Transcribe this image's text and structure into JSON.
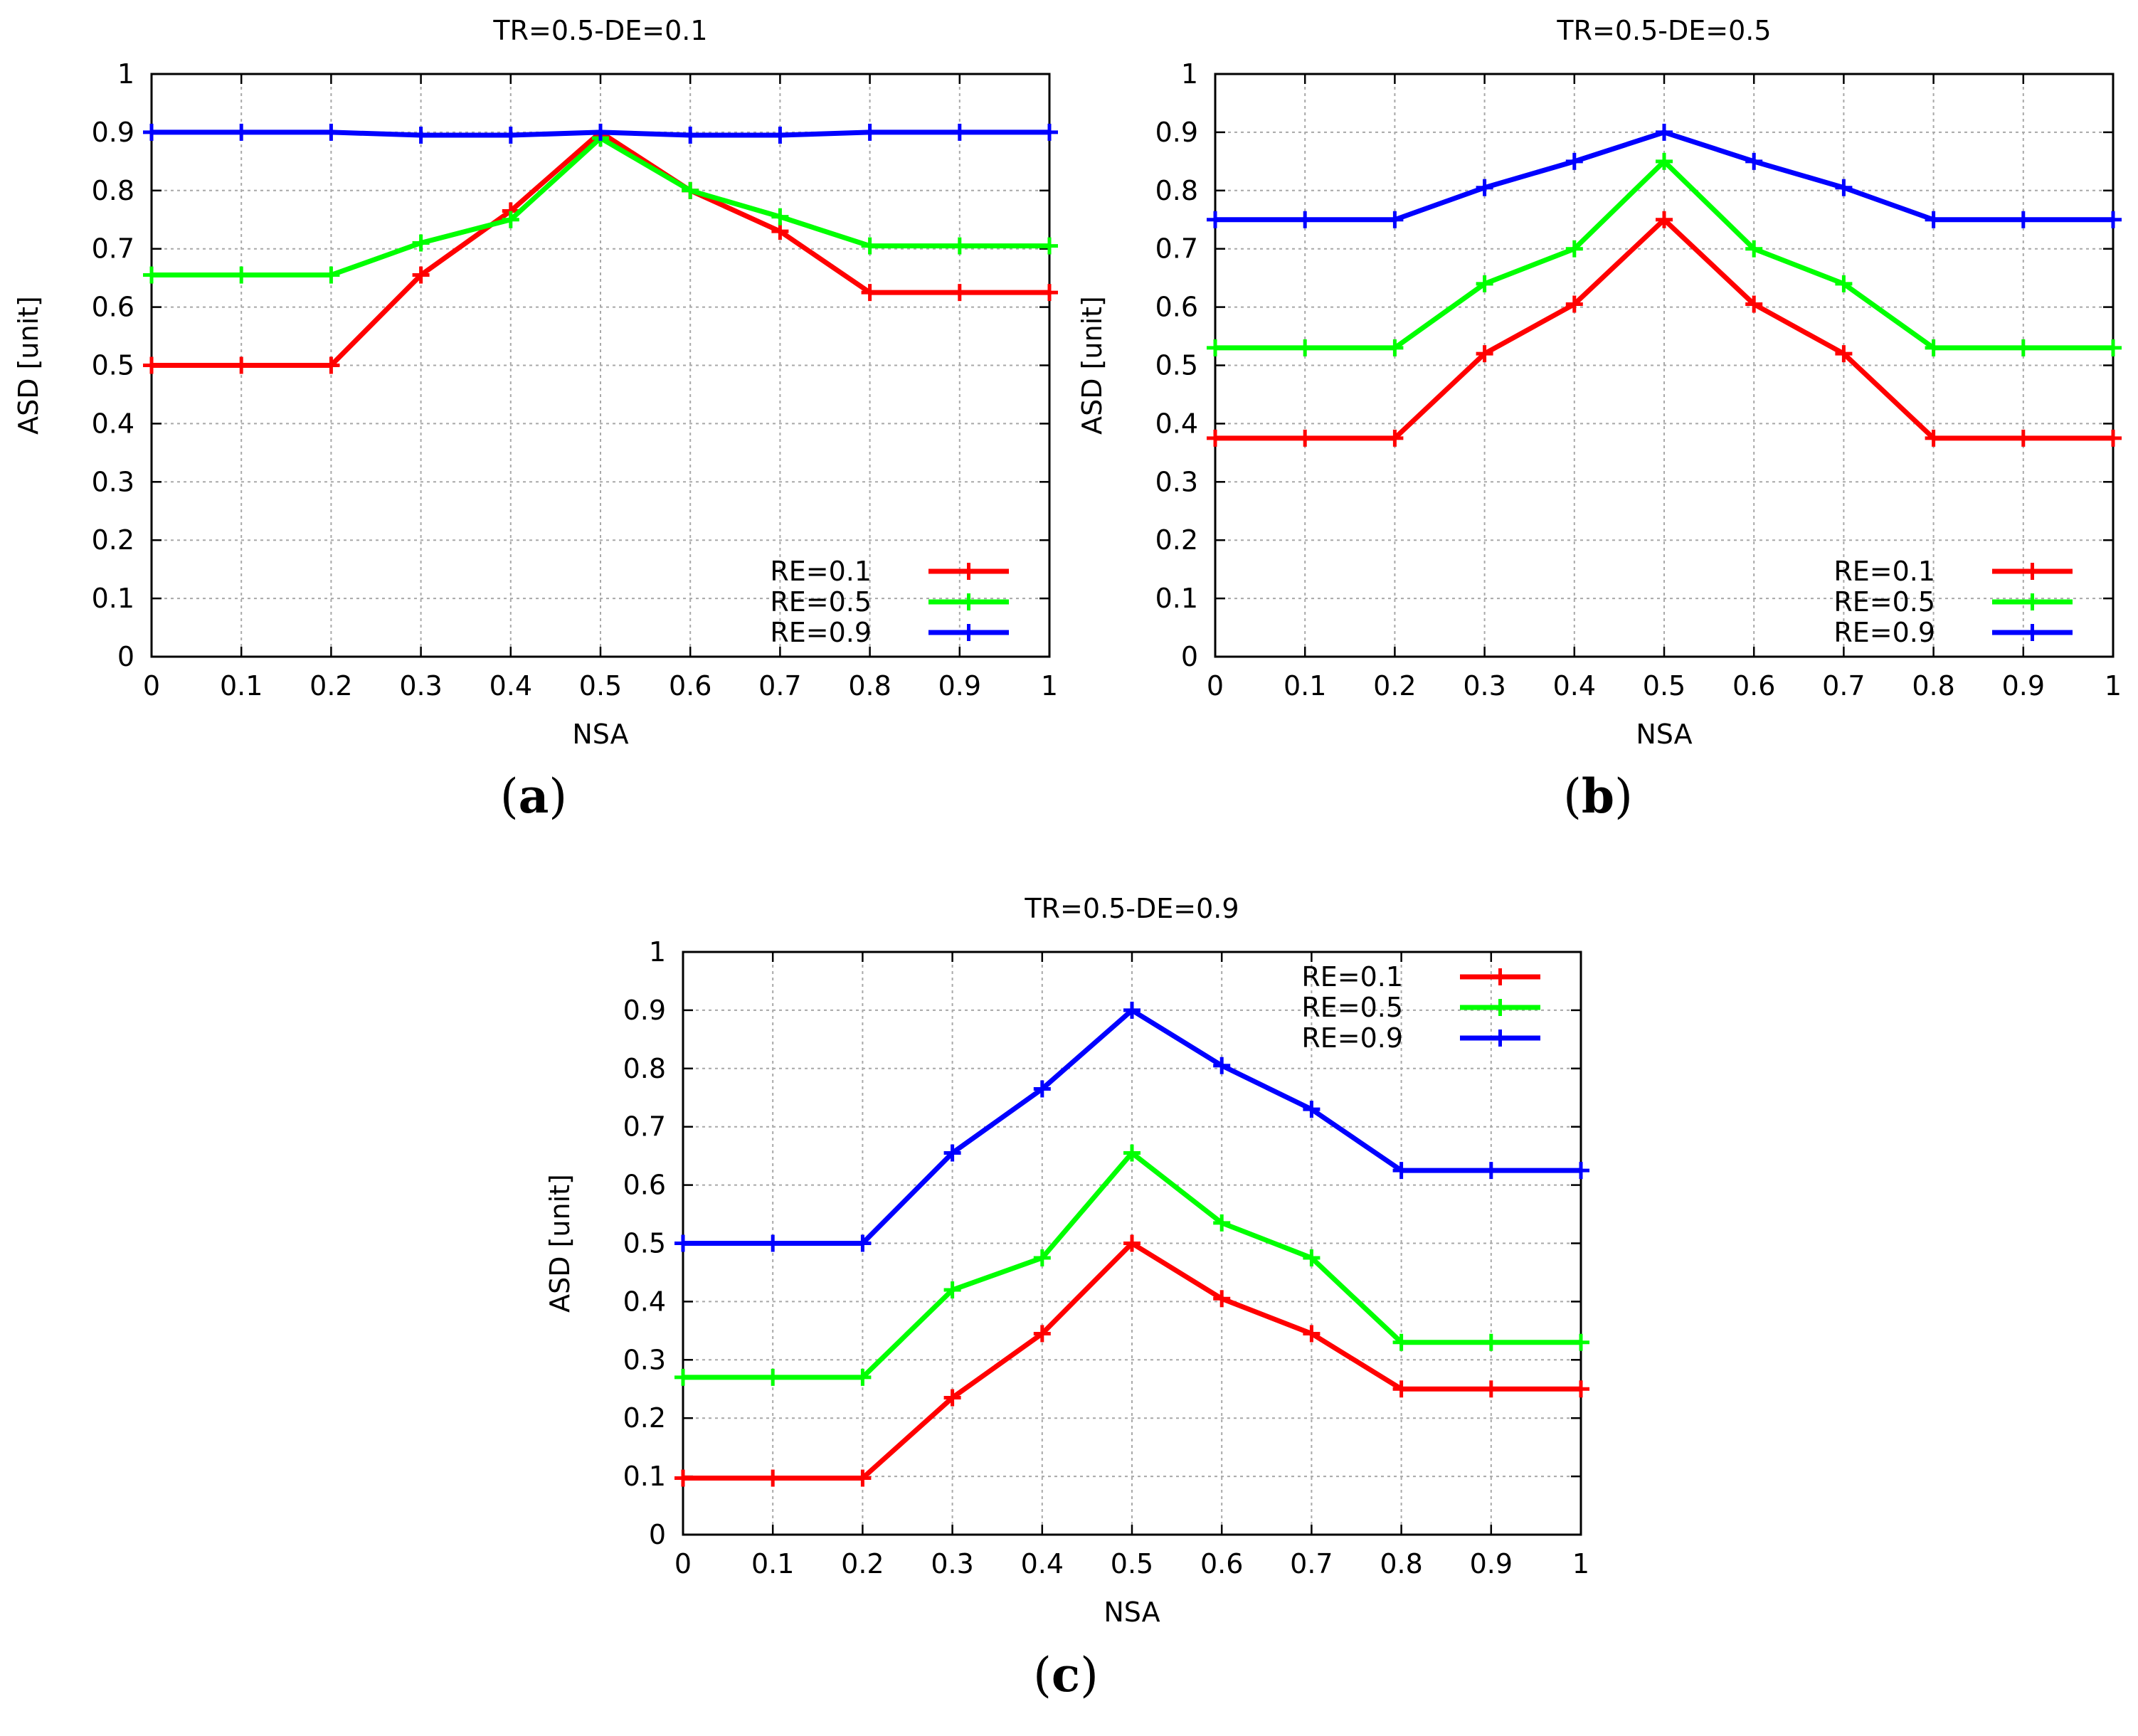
{
  "figure": {
    "panel_letters": [
      "a",
      "b",
      "c"
    ]
  },
  "colors": {
    "RE=0.1": "#ff0000",
    "RE=0.5": "#00ff00",
    "RE=0.9": "#0000ff"
  },
  "chart_data": [
    {
      "type": "line",
      "title": "TR=0.5-DE=0.1",
      "xlabel": "NSA",
      "ylabel": "ASD [unit]",
      "xlim": [
        0,
        1
      ],
      "ylim": [
        0,
        1
      ],
      "xticks": [
        "0",
        "0.1",
        "0.2",
        "0.3",
        "0.4",
        "0.5",
        "0.6",
        "0.7",
        "0.8",
        "0.9",
        "1"
      ],
      "yticks": [
        "0",
        "0.1",
        "0.2",
        "0.3",
        "0.4",
        "0.5",
        "0.6",
        "0.7",
        "0.8",
        "0.9",
        "1"
      ],
      "grid": true,
      "legend_position": "bottom-right",
      "x": [
        0,
        0.1,
        0.2,
        0.3,
        0.4,
        0.5,
        0.6,
        0.7,
        0.8,
        0.9,
        1.0
      ],
      "series": [
        {
          "name": "RE=0.1",
          "values": [
            0.5,
            0.5,
            0.5,
            0.655,
            0.765,
            0.9,
            0.8,
            0.73,
            0.625,
            0.625,
            0.625
          ]
        },
        {
          "name": "RE=0.5",
          "values": [
            0.655,
            0.655,
            0.655,
            0.71,
            0.75,
            0.89,
            0.8,
            0.755,
            0.705,
            0.705,
            0.705
          ]
        },
        {
          "name": "RE=0.9",
          "values": [
            0.9,
            0.9,
            0.9,
            0.895,
            0.895,
            0.9,
            0.895,
            0.895,
            0.9,
            0.9,
            0.9
          ]
        }
      ]
    },
    {
      "type": "line",
      "title": "TR=0.5-DE=0.5",
      "xlabel": "NSA",
      "ylabel": "ASD [unit]",
      "xlim": [
        0,
        1
      ],
      "ylim": [
        0,
        1
      ],
      "xticks": [
        "0",
        "0.1",
        "0.2",
        "0.3",
        "0.4",
        "0.5",
        "0.6",
        "0.7",
        "0.8",
        "0.9",
        "1"
      ],
      "yticks": [
        "0",
        "0.1",
        "0.2",
        "0.3",
        "0.4",
        "0.5",
        "0.6",
        "0.7",
        "0.8",
        "0.9",
        "1"
      ],
      "grid": true,
      "legend_position": "bottom-right",
      "x": [
        0,
        0.1,
        0.2,
        0.3,
        0.4,
        0.5,
        0.6,
        0.7,
        0.8,
        0.9,
        1.0
      ],
      "series": [
        {
          "name": "RE=0.1",
          "values": [
            0.375,
            0.375,
            0.375,
            0.52,
            0.605,
            0.75,
            0.605,
            0.52,
            0.375,
            0.375,
            0.375
          ]
        },
        {
          "name": "RE=0.5",
          "values": [
            0.53,
            0.53,
            0.53,
            0.64,
            0.7,
            0.85,
            0.7,
            0.64,
            0.53,
            0.53,
            0.53
          ]
        },
        {
          "name": "RE=0.9",
          "values": [
            0.75,
            0.75,
            0.75,
            0.805,
            0.85,
            0.9,
            0.85,
            0.805,
            0.75,
            0.75,
            0.75
          ]
        }
      ]
    },
    {
      "type": "line",
      "title": "TR=0.5-DE=0.9",
      "xlabel": "NSA",
      "ylabel": "ASD [unit]",
      "xlim": [
        0,
        1
      ],
      "ylim": [
        0,
        1
      ],
      "xticks": [
        "0",
        "0.1",
        "0.2",
        "0.3",
        "0.4",
        "0.5",
        "0.6",
        "0.7",
        "0.8",
        "0.9",
        "1"
      ],
      "yticks": [
        "0",
        "0.1",
        "0.2",
        "0.3",
        "0.4",
        "0.5",
        "0.6",
        "0.7",
        "0.8",
        "0.9",
        "1"
      ],
      "grid": true,
      "legend_position": "top-right",
      "x": [
        0,
        0.1,
        0.2,
        0.3,
        0.4,
        0.5,
        0.6,
        0.7,
        0.8,
        0.9,
        1.0
      ],
      "series": [
        {
          "name": "RE=0.1",
          "values": [
            0.097,
            0.097,
            0.097,
            0.235,
            0.345,
            0.5,
            0.405,
            0.345,
            0.25,
            0.25,
            0.25
          ]
        },
        {
          "name": "RE=0.5",
          "values": [
            0.27,
            0.27,
            0.27,
            0.42,
            0.475,
            0.655,
            0.535,
            0.475,
            0.33,
            0.33,
            0.33
          ]
        },
        {
          "name": "RE=0.9",
          "values": [
            0.5,
            0.5,
            0.5,
            0.655,
            0.765,
            0.9,
            0.805,
            0.73,
            0.625,
            0.625,
            0.625
          ]
        }
      ]
    }
  ]
}
